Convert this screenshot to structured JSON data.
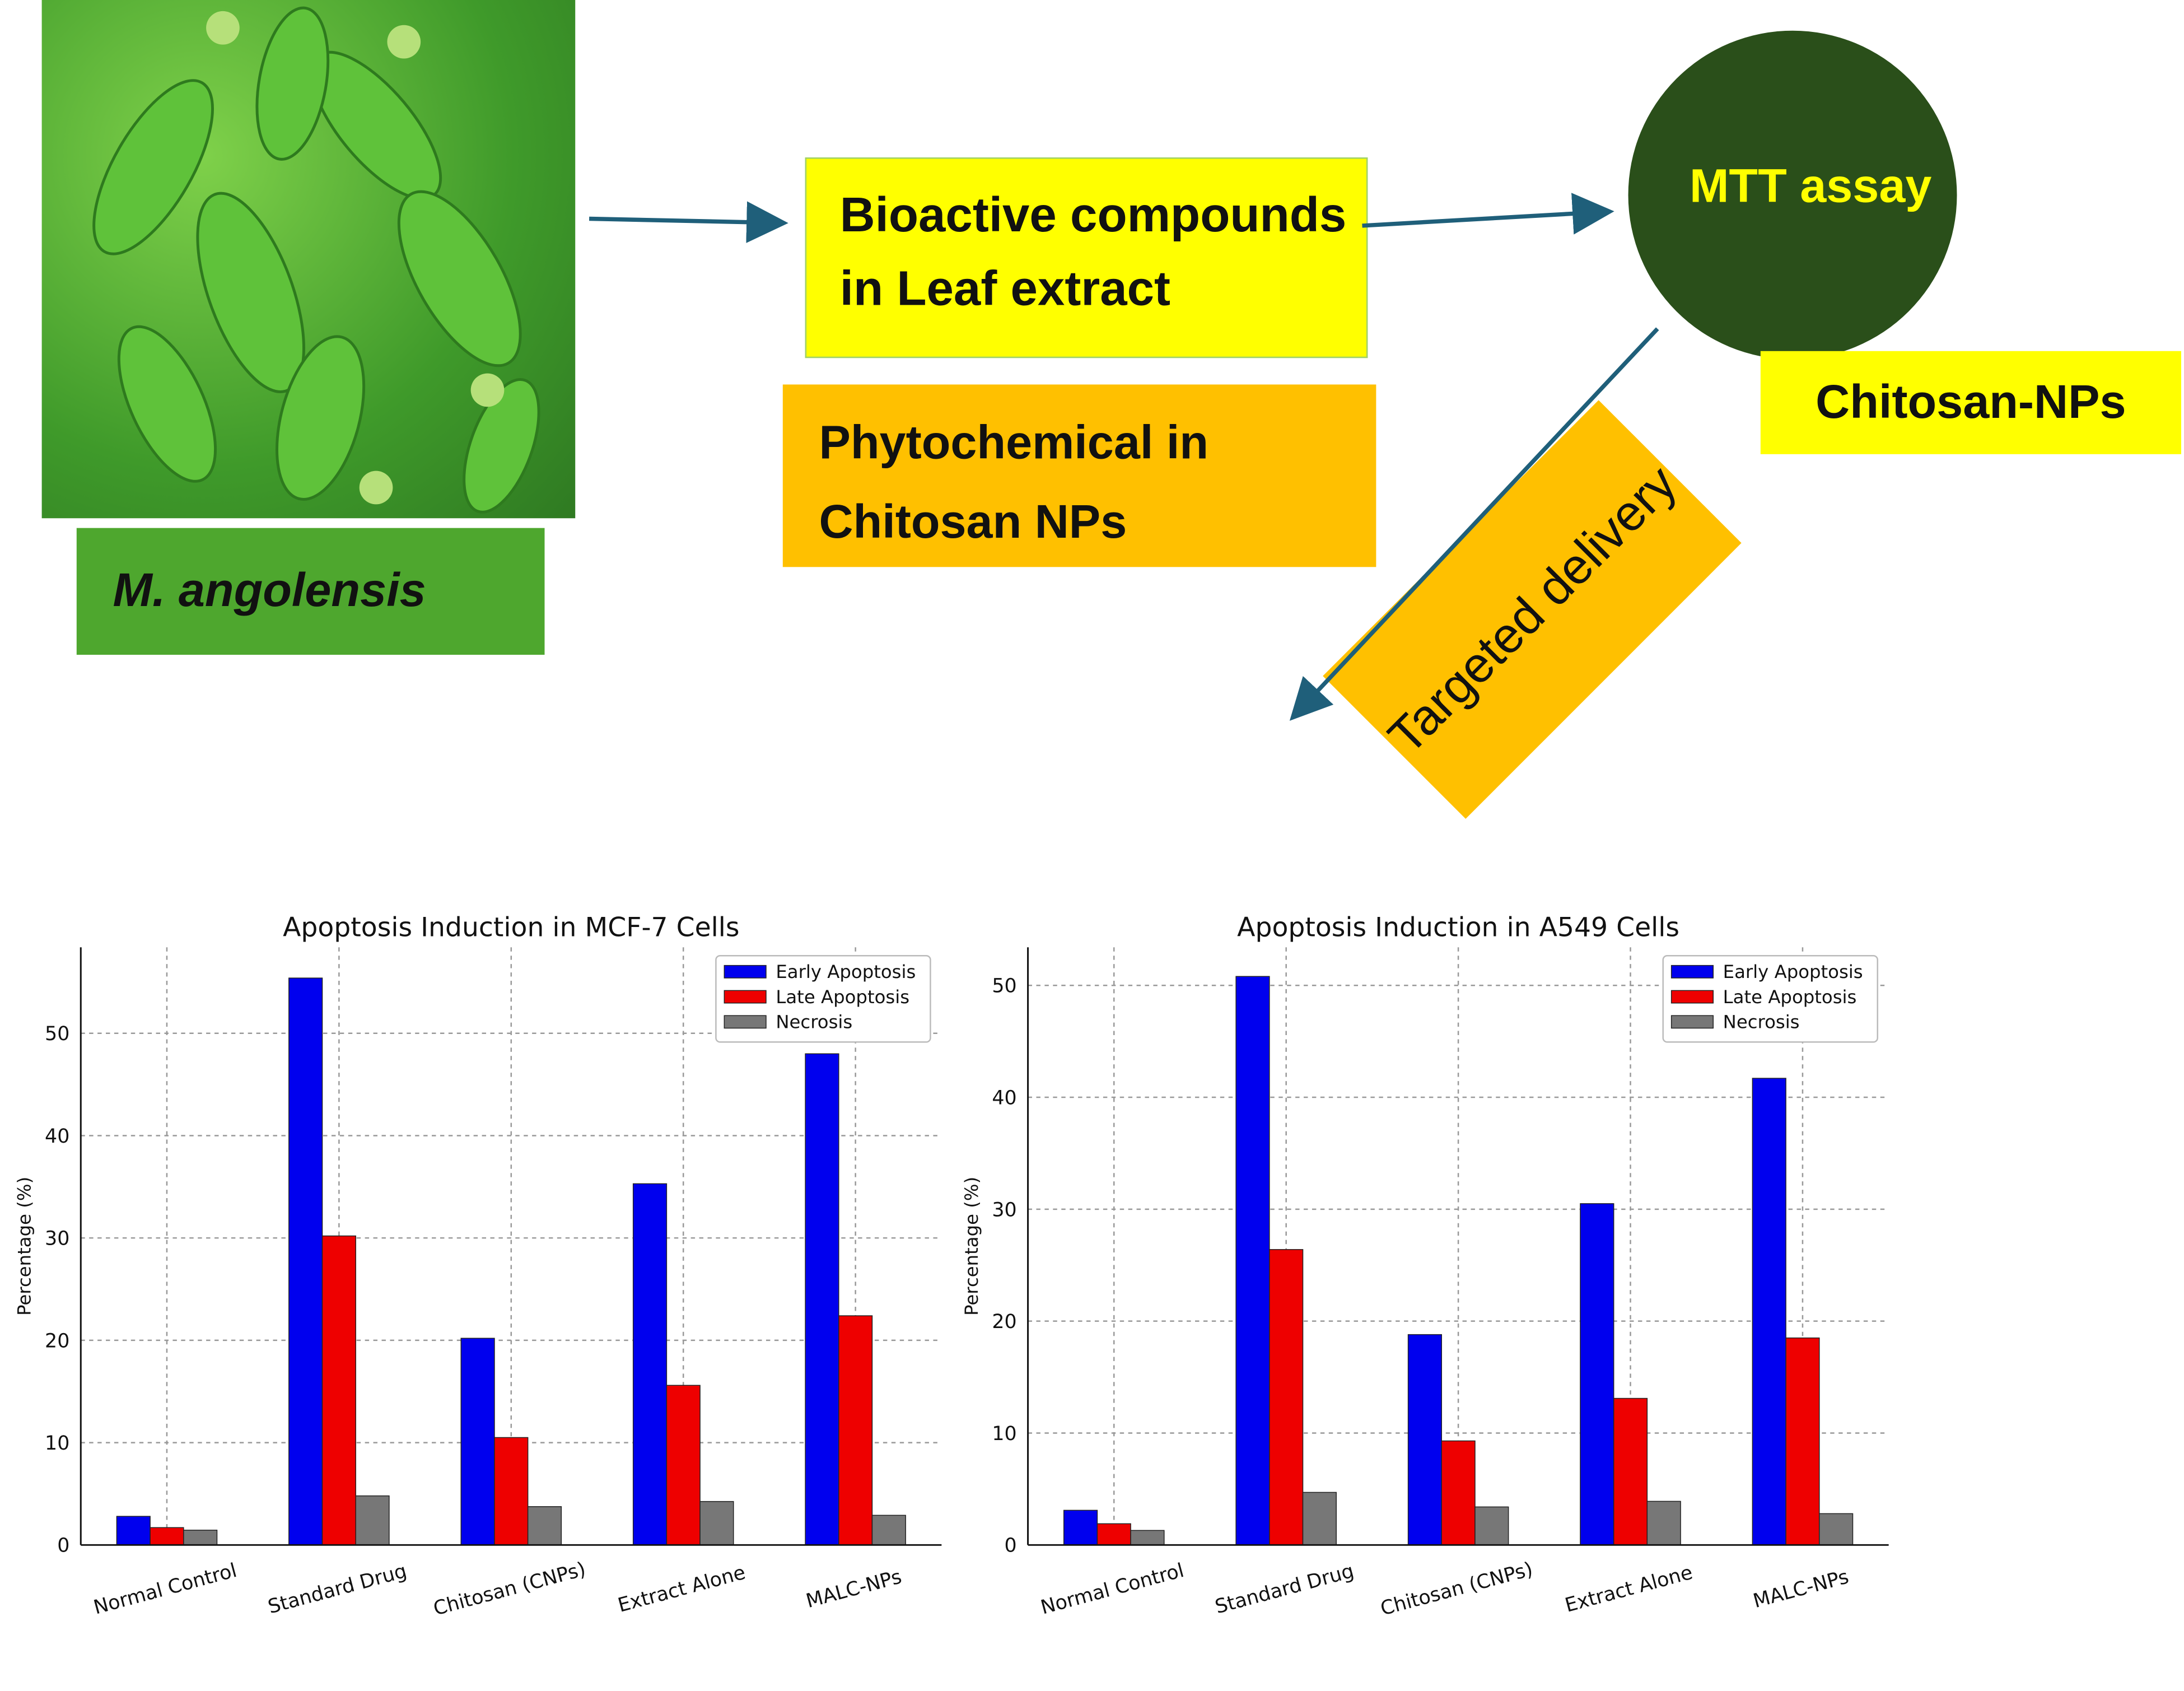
{
  "plant": {
    "name": "M. angolensis"
  },
  "flow": {
    "extract_box": [
      "Bioactive compounds",
      "in Leaf extract"
    ],
    "nps_box": [
      "Phytochemical in",
      "Chitosan NPs"
    ],
    "assay": "MTT assay",
    "carrier": "Chitosan-NPs",
    "delivery": "Targeted delivery"
  },
  "colors": {
    "arrow": "#1f5f7a",
    "early": "#0000ee",
    "late": "#ee0000",
    "necrosis": "#777777",
    "green_label": "#4ea72e",
    "yellow": "#ffff00",
    "orange": "#ffc000",
    "circle": "#2a4f1a"
  },
  "chart_data": [
    {
      "type": "bar",
      "title": "Apoptosis Induction in MCF-7 Cells",
      "xlabel": "",
      "ylabel": "Percentage (%)",
      "categories": [
        "Normal Control",
        "Standard Drug",
        "Chitosan (CNPs)",
        "Extract Alone",
        "MALC-NPs"
      ],
      "series": [
        {
          "name": "Early Apoptosis",
          "values": [
            2.8,
            55.4,
            20.2,
            35.3,
            48.0
          ]
        },
        {
          "name": "Late Apoptosis",
          "values": [
            1.7,
            30.2,
            10.5,
            15.6,
            22.4
          ]
        },
        {
          "name": "Necrosis",
          "values": [
            1.45,
            4.8,
            3.75,
            4.25,
            2.9
          ]
        }
      ],
      "yticks": [
        "0",
        "10",
        "20",
        "30",
        "40",
        "50"
      ],
      "ylim": [
        0,
        58.4
      ],
      "grid": true,
      "legend": "top-right"
    },
    {
      "type": "bar",
      "title": "Apoptosis Induction in A549 Cells",
      "xlabel": "",
      "ylabel": "Percentage (%)",
      "categories": [
        "Normal Control",
        "Standard Drug",
        "Chitosan (CNPs)",
        "Extract Alone",
        "MALC-NPs"
      ],
      "series": [
        {
          "name": "Early Apoptosis",
          "values": [
            3.1,
            50.8,
            18.8,
            30.5,
            41.7
          ]
        },
        {
          "name": "Late Apoptosis",
          "values": [
            1.9,
            26.4,
            9.3,
            13.1,
            18.5
          ]
        },
        {
          "name": "Necrosis",
          "values": [
            1.3,
            4.7,
            3.4,
            3.9,
            2.8
          ]
        }
      ],
      "yticks": [
        "0",
        "10",
        "20",
        "30",
        "40",
        "50"
      ],
      "ylim": [
        0,
        53.4
      ],
      "grid": true,
      "legend": "top-right"
    }
  ]
}
